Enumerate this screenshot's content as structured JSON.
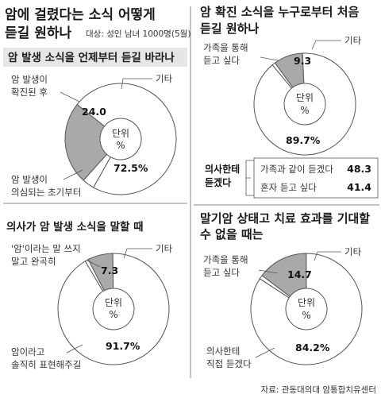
{
  "header": {
    "title_line1": "암에 걸렸다는 소식 어떻게",
    "title_line2": "듣길 원하나",
    "subtitle": "대상: 성인 남녀 1000명(5월)"
  },
  "unit_label_1": "단위",
  "unit_label_2": "%",
  "source": "자료: 관동대의대 암통합치유센터",
  "colors": {
    "slice": "#a9a9a9",
    "ring": "#ffffff",
    "stroke": "#555555",
    "divider": "#888888"
  },
  "chart_data": [
    {
      "type": "pie",
      "title": "암 발생 소식을 언제부터 듣길 바라나",
      "slices": [
        {
          "label_lines": [
            "암 발생이",
            "확진된 후"
          ],
          "value": 24.0,
          "value_text": "24.0"
        },
        {
          "label_lines": [
            "암 발생이",
            "의심되는 초기부터"
          ],
          "value": 72.5,
          "value_text": "72.5%"
        },
        {
          "label_lines": [
            "기타"
          ],
          "value": 3.5,
          "value_text": ""
        }
      ]
    },
    {
      "type": "pie",
      "title": "의사가 암 발생 소식을 말할 때",
      "slices": [
        {
          "label_lines": [
            "'암'이라는 말 쓰지",
            "말고 완곡히"
          ],
          "value": 7.3,
          "value_text": "7.3"
        },
        {
          "label_lines": [
            "암이라고",
            "솔직히 표현해주길"
          ],
          "value": 91.7,
          "value_text": "91.7%"
        },
        {
          "label_lines": [
            "기타"
          ],
          "value": 1.0,
          "value_text": ""
        }
      ]
    },
    {
      "type": "pie",
      "title_lines": [
        "암 확진 소식을 누구로부터 처음",
        "듣길 원하나"
      ],
      "slices": [
        {
          "label_lines": [
            "가족을 통해",
            "듣고 싶다"
          ],
          "value": 9.3,
          "value_text": "9.3"
        },
        {
          "label_lines": [
            "의사한테",
            "듣겠다"
          ],
          "value": 89.7,
          "value_text": "89.7%"
        },
        {
          "label_lines": [
            "기타"
          ],
          "value": 1.0,
          "value_text": ""
        }
      ],
      "breakdown": [
        {
          "label": "가족과 같이 듣겠다",
          "value": 48.3
        },
        {
          "label": "혼자 듣고 싶다",
          "value": 41.4
        }
      ]
    },
    {
      "type": "pie",
      "title_lines": [
        "말기암 상태고 치료 효과를 기대할",
        "수 없을 때는"
      ],
      "slices": [
        {
          "label_lines": [
            "가족을 통해",
            "듣고 싶다"
          ],
          "value": 14.7,
          "value_text": "14.7"
        },
        {
          "label_lines": [
            "의사한테",
            "직접 듣겠다"
          ],
          "value": 84.2,
          "value_text": "84.2%"
        },
        {
          "label_lines": [
            "기타"
          ],
          "value": 1.1,
          "value_text": ""
        }
      ]
    }
  ]
}
